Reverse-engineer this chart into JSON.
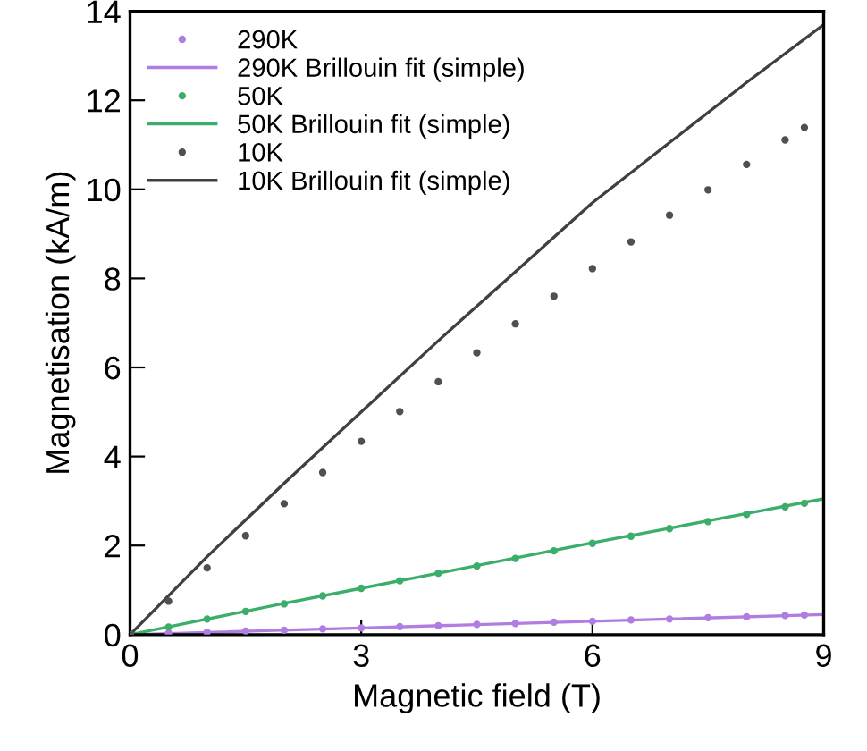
{
  "chart_data": {
    "type": "line",
    "xlabel": "Magnetic field (T)",
    "ylabel": "Magnetisation (kA/m)",
    "xlim": [
      0,
      9
    ],
    "ylim": [
      0,
      14
    ],
    "xticks": [
      0,
      3,
      6,
      9
    ],
    "yticks": [
      0,
      2,
      4,
      6,
      8,
      10,
      12,
      14
    ],
    "grid": false,
    "legend": "top left",
    "series": [
      {
        "name": "290K",
        "type": "scatter",
        "marker": "circle",
        "color": "#b07ee0",
        "x": [
          0,
          0.5,
          1,
          1.5,
          2,
          2.5,
          3,
          3.5,
          4,
          4.5,
          5,
          5.5,
          6,
          6.5,
          7,
          7.5,
          8,
          8.5,
          8.75
        ],
        "values": [
          0,
          0.03,
          0.05,
          0.08,
          0.1,
          0.13,
          0.15,
          0.18,
          0.2,
          0.23,
          0.25,
          0.28,
          0.3,
          0.33,
          0.35,
          0.38,
          0.4,
          0.43,
          0.44
        ]
      },
      {
        "name": "290K Brillouin fit (simple)",
        "color": "#b07ee0",
        "x": [
          0,
          3,
          6,
          9
        ],
        "values": [
          0,
          0.15,
          0.3,
          0.45
        ]
      },
      {
        "name": "50K",
        "type": "scatter",
        "marker": "circle",
        "color": "#3aae6a",
        "x": [
          0,
          0.5,
          1,
          1.5,
          2,
          2.5,
          3,
          3.5,
          4,
          4.5,
          5,
          5.5,
          6,
          6.5,
          7,
          7.5,
          8,
          8.5,
          8.75
        ],
        "values": [
          0,
          0.17,
          0.35,
          0.52,
          0.69,
          0.87,
          1.04,
          1.21,
          1.38,
          1.54,
          1.71,
          1.88,
          2.05,
          2.21,
          2.38,
          2.54,
          2.7,
          2.87,
          2.95
        ]
      },
      {
        "name": "50K Brillouin fit (simple)",
        "color": "#3aae6a",
        "x": [
          0,
          1,
          2,
          3,
          4,
          5,
          6,
          7,
          8,
          9
        ],
        "values": [
          0,
          0.35,
          0.7,
          1.04,
          1.38,
          1.72,
          2.06,
          2.39,
          2.72,
          3.05
        ]
      },
      {
        "name": "10K",
        "type": "scatter",
        "marker": "circle",
        "color": "#505050",
        "x": [
          0,
          0.5,
          1,
          1.5,
          2,
          2.5,
          3,
          3.5,
          4,
          4.5,
          5,
          5.5,
          6,
          6.5,
          7,
          7.5,
          8,
          8.5,
          8.75
        ],
        "values": [
          0,
          0.75,
          1.5,
          2.22,
          2.94,
          3.64,
          4.34,
          5.01,
          5.68,
          6.33,
          6.98,
          7.6,
          8.22,
          8.82,
          9.42,
          9.99,
          10.56,
          11.11,
          11.39
        ]
      },
      {
        "name": "10K Brillouin fit (simple)",
        "color": "#404040",
        "x": [
          0,
          1,
          2,
          3,
          4,
          5,
          6,
          7,
          8,
          9
        ],
        "values": [
          0,
          1.75,
          3.4,
          5.0,
          6.6,
          8.15,
          9.7,
          11.05,
          12.4,
          13.7
        ]
      }
    ]
  }
}
